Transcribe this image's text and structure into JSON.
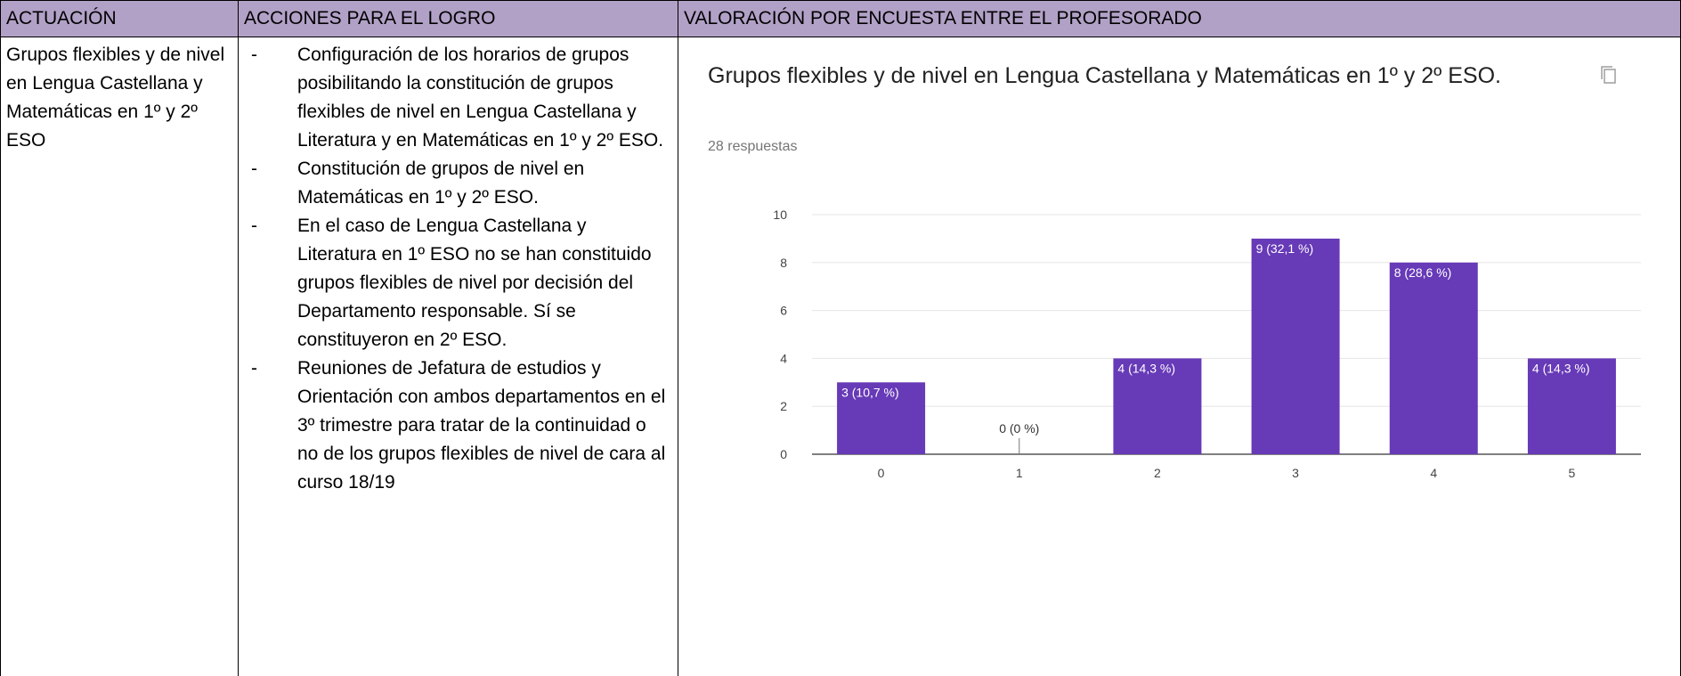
{
  "table": {
    "headers": [
      "ACTUACIÓN",
      "ACCIONES PARA EL LOGRO",
      "VALORACIÓN POR ENCUESTA ENTRE EL PROFESORADO"
    ],
    "rows": [
      {
        "actuacion": "Grupos flexibles y de nivel en Lengua Castellana y Matemáticas en 1º y 2º ESO",
        "acciones": [
          "Configuración de los horarios de grupos posibilitando la constitución de grupos flexibles de nivel en Lengua Castellana y Literatura y en Matemáticas en 1º y 2º ESO.",
          "Constitución de grupos de nivel en Matemáticas en 1º y 2º ESO.",
          "En el caso de Lengua Castellana y Literatura en 1º ESO no se han constituido grupos flexibles de nivel por decisión del Departamento responsable. Sí se constituyeron en 2º ESO.",
          "Reuniones de Jefatura de estudios y Orientación con ambos departamentos en el 3º trimestre para tratar de la continuidad o no de los grupos flexibles de nivel de cara al curso 18/19"
        ],
        "bullet": "-"
      }
    ]
  },
  "chart_data": {
    "type": "bar",
    "title": "Grupos flexibles y de nivel en Lengua Castellana y Matemáticas en 1º y 2º ESO.",
    "subtitle": "28 respuestas",
    "categories": [
      "0",
      "1",
      "2",
      "3",
      "4",
      "5"
    ],
    "values": [
      3,
      0,
      4,
      9,
      8,
      4
    ],
    "value_labels": [
      "3 (10,7 %)",
      "0 (0 %)",
      "4 (14,3 %)",
      "9 (32,1 %)",
      "8 (28,6 %)",
      "4 (14,3 %)"
    ],
    "color": "#673ab7",
    "ylim": [
      0,
      10
    ],
    "yticks": [
      0,
      2,
      4,
      6,
      8,
      10
    ],
    "grid": true
  }
}
